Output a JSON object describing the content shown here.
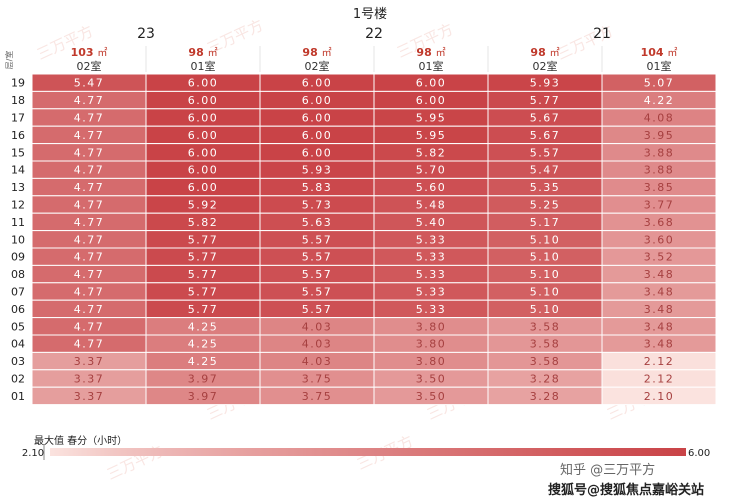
{
  "chart_data": {
    "type": "heatmap",
    "title": "1号楼",
    "corner_label": "层/室",
    "groups": [
      {
        "name": "23",
        "span": 2
      },
      {
        "name": "22",
        "span": 2
      },
      {
        "name": "21",
        "span": 2
      }
    ],
    "columns": [
      {
        "area": "103",
        "unit": "㎡",
        "room": "02室"
      },
      {
        "area": "98",
        "unit": "㎡",
        "room": "01室"
      },
      {
        "area": "98",
        "unit": "㎡",
        "room": "02室"
      },
      {
        "area": "98",
        "unit": "㎡",
        "room": "01室"
      },
      {
        "area": "98",
        "unit": "㎡",
        "room": "02室"
      },
      {
        "area": "104",
        "unit": "㎡",
        "room": "01室"
      }
    ],
    "floors": [
      "19",
      "18",
      "17",
      "16",
      "15",
      "14",
      "13",
      "12",
      "11",
      "10",
      "09",
      "08",
      "07",
      "06",
      "05",
      "04",
      "03",
      "02",
      "01"
    ],
    "values": [
      [
        5.47,
        6.0,
        6.0,
        6.0,
        5.93,
        5.07
      ],
      [
        4.77,
        6.0,
        6.0,
        6.0,
        5.77,
        4.22
      ],
      [
        4.77,
        6.0,
        6.0,
        5.95,
        5.67,
        4.08
      ],
      [
        4.77,
        6.0,
        6.0,
        5.95,
        5.67,
        3.95
      ],
      [
        4.77,
        6.0,
        6.0,
        5.82,
        5.57,
        3.88
      ],
      [
        4.77,
        6.0,
        5.93,
        5.7,
        5.47,
        3.88
      ],
      [
        4.77,
        6.0,
        5.83,
        5.6,
        5.35,
        3.85
      ],
      [
        4.77,
        5.92,
        5.73,
        5.48,
        5.25,
        3.77
      ],
      [
        4.77,
        5.82,
        5.63,
        5.4,
        5.17,
        3.68
      ],
      [
        4.77,
        5.77,
        5.57,
        5.33,
        5.1,
        3.6
      ],
      [
        4.77,
        5.77,
        5.57,
        5.33,
        5.1,
        3.52
      ],
      [
        4.77,
        5.77,
        5.57,
        5.33,
        5.1,
        3.48
      ],
      [
        4.77,
        5.77,
        5.57,
        5.33,
        5.1,
        3.48
      ],
      [
        4.77,
        5.77,
        5.57,
        5.33,
        5.1,
        3.48
      ],
      [
        4.77,
        4.25,
        4.03,
        3.8,
        3.58,
        3.48
      ],
      [
        4.77,
        4.25,
        4.03,
        3.8,
        3.58,
        3.48
      ],
      [
        3.37,
        4.25,
        4.03,
        3.8,
        3.58,
        2.12
      ],
      [
        3.37,
        3.97,
        3.75,
        3.5,
        3.28,
        2.12
      ],
      [
        3.37,
        3.97,
        3.75,
        3.5,
        3.28,
        2.1
      ]
    ],
    "legend": {
      "label": "最大值 春分（小时）",
      "min": 2.1,
      "max": 6.0,
      "min_label": "2.10",
      "max_label": "6.00"
    },
    "colors": {
      "low": "#fbe3df",
      "high": "#c94347",
      "grid": "#ffffff",
      "text_dark": "#a64040",
      "text_light": "#ffffff"
    },
    "watermark": "三万平方",
    "footer": {
      "zhihu": "知乎 @三万平方",
      "sohu": "搜狐号@搜狐焦点嘉峪关站"
    }
  }
}
